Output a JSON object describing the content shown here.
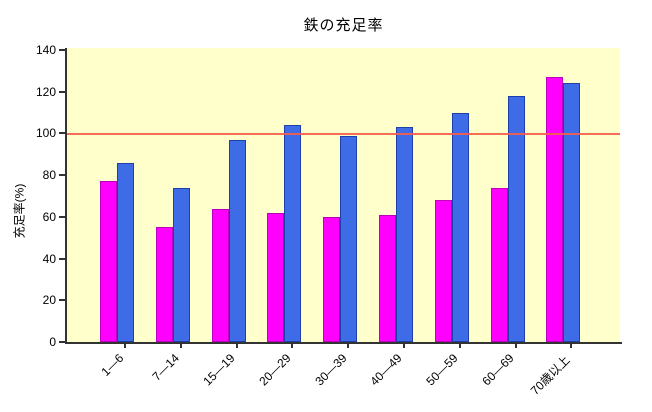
{
  "chart_data": {
    "type": "bar",
    "title": "鉄の充足率",
    "ylabel": "充足率(%)",
    "xlabel": "",
    "ylim": [
      0,
      140
    ],
    "yticks": [
      0,
      20,
      40,
      60,
      80,
      100,
      120,
      140
    ],
    "categories": [
      "1—6",
      "7—14",
      "15—19",
      "20—29",
      "30—39",
      "40—49",
      "50—59",
      "60—69",
      "70歳以上"
    ],
    "series": [
      {
        "name": "magenta",
        "color": "#FF00FF",
        "border_color": "#BB00BB",
        "values": [
          77,
          55,
          64,
          62,
          60,
          61,
          68,
          74,
          127
        ]
      },
      {
        "name": "blue",
        "color": "#3E6BE6",
        "border_color": "#1E3FA8",
        "values": [
          86,
          74,
          97,
          104,
          99,
          103,
          110,
          118,
          124
        ]
      }
    ],
    "reference_line": {
      "y": 100,
      "color": "#F4604D"
    },
    "plot_background": "#FFFFCC",
    "page_background": "#FFFFFF",
    "axis_color": "#333333",
    "grid": false,
    "legend": "none"
  }
}
